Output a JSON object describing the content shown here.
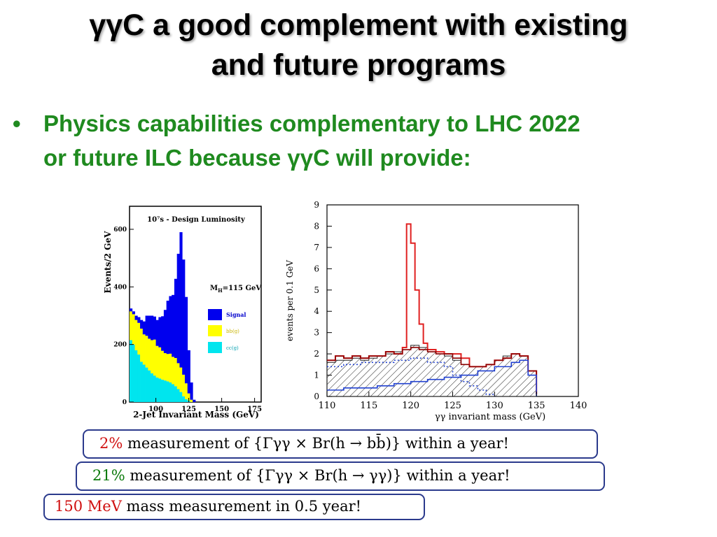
{
  "slide": {
    "title_line1": "γγC a good complement with existing",
    "title_line2": "and future programs",
    "bullet": "•",
    "bullet_line1": "Physics capabilities complementary to LHC  2022",
    "bullet_line2": "or future ILC because γγC will provide:"
  },
  "left_plot": {
    "title": "10⁷s - Design Luminosity",
    "ylabel": "Events/2 GeV",
    "xlabel": "2-Jet Invariant Mass (GeV)",
    "mass_label": "M",
    "mass_sub": "H",
    "mass_value": "=115 GeV",
    "legend": [
      "Signal",
      "bb(g)",
      "cc(g)"
    ]
  },
  "right_plot": {
    "ylabel": "events per 0.1 GeV",
    "xlabel": "γγ invariant mass (GeV)"
  },
  "boxes": {
    "box1_pct": "2%",
    "box1_text": " measurement of {Γγγ × Br(h → bb̄)} within a year!",
    "box2_pct": "21%",
    "box2_text": " measurement of {Γγγ × Br(h → γγ)} within a year!",
    "box3_val": "150 MeV",
    "box3_text": " mass measurement in 0.5 year!"
  },
  "chart_data": [
    {
      "type": "area",
      "title": "10⁷s - Design Luminosity",
      "xlabel": "2-Jet Invariant Mass (GeV)",
      "ylabel": "Events/2 GeV",
      "xlim": [
        80,
        180
      ],
      "ylim": [
        0,
        680
      ],
      "xticks": [
        100,
        125,
        150,
        175
      ],
      "yticks": [
        0,
        200,
        400,
        600
      ],
      "stacked": true,
      "bin_width": 2,
      "x": [
        80,
        82,
        84,
        86,
        88,
        90,
        92,
        94,
        96,
        98,
        100,
        102,
        104,
        106,
        108,
        110,
        112,
        114,
        116,
        118,
        120,
        122,
        124,
        126,
        128,
        130
      ],
      "series": [
        {
          "name": "cc(g)",
          "color": "#00e5ee",
          "values": [
            215,
            200,
            180,
            165,
            140,
            130,
            120,
            110,
            100,
            92,
            85,
            82,
            78,
            75,
            72,
            68,
            62,
            55,
            45,
            35,
            20,
            10,
            5,
            0,
            0,
            0
          ]
        },
        {
          "name": "bb(g)",
          "color": "#ffff00",
          "values": [
            100,
            105,
            105,
            110,
            115,
            105,
            110,
            110,
            115,
            125,
            110,
            108,
            100,
            95,
            95,
            100,
            95,
            98,
            90,
            85,
            75,
            55,
            25,
            8,
            0,
            0
          ]
        },
        {
          "name": "Signal",
          "color": "#0000ee",
          "values": [
            10,
            10,
            15,
            20,
            30,
            45,
            70,
            80,
            85,
            80,
            90,
            105,
            120,
            150,
            185,
            200,
            215,
            275,
            380,
            470,
            400,
            300,
            150,
            60,
            8,
            0
          ]
        }
      ]
    },
    {
      "type": "line",
      "xlabel": "γγ invariant mass (GeV)",
      "ylabel": "events per 0.1 GeV",
      "xlim": [
        110,
        140
      ],
      "ylim": [
        0,
        9
      ],
      "xticks": [
        110,
        115,
        120,
        125,
        130,
        135,
        140
      ],
      "yticks": [
        0,
        1,
        2,
        3,
        4,
        5,
        6,
        7,
        8,
        9
      ],
      "series": [
        {
          "name": "total",
          "color": "#e02020",
          "x": [
            110,
            111,
            112,
            113,
            114,
            115,
            116,
            117,
            118,
            119,
            119.5,
            120,
            120.5,
            121,
            121.5,
            122,
            123,
            124,
            125,
            126,
            127,
            128,
            129,
            130,
            131,
            132,
            133,
            134,
            135
          ],
          "values": [
            1.7,
            1.9,
            1.8,
            1.9,
            1.8,
            1.9,
            1.9,
            2.1,
            2.0,
            2.3,
            8.1,
            7.2,
            5.0,
            3.4,
            2.5,
            2.2,
            2.1,
            2.0,
            2.0,
            1.8,
            1.4,
            1.4,
            1.5,
            1.7,
            1.8,
            2.0,
            1.9,
            1.2,
            0.1
          ]
        },
        {
          "name": "background",
          "color": "#8b0000",
          "x": [
            110,
            111,
            112,
            113,
            114,
            115,
            116,
            117,
            118,
            119,
            120,
            121,
            122,
            123,
            124,
            125,
            126,
            127,
            128,
            129,
            130,
            131,
            132,
            133,
            134,
            135
          ],
          "values": [
            1.7,
            1.9,
            1.8,
            1.9,
            1.8,
            1.9,
            1.9,
            2.1,
            2.0,
            2.2,
            2.3,
            2.2,
            2.1,
            2.0,
            2.0,
            1.8,
            1.5,
            1.4,
            1.4,
            1.5,
            1.7,
            1.8,
            2.0,
            1.9,
            1.2,
            0.1
          ]
        },
        {
          "name": "hatched",
          "color": "#222222",
          "x": [
            110,
            111,
            112,
            113,
            114,
            115,
            116,
            117,
            118,
            119,
            120,
            121,
            122,
            123,
            124,
            125,
            126,
            127,
            128,
            129,
            130,
            131,
            132,
            133,
            134,
            135
          ],
          "values": [
            1.6,
            1.7,
            1.7,
            1.8,
            1.7,
            1.8,
            1.9,
            2.0,
            2.1,
            2.2,
            2.4,
            2.3,
            2.1,
            2.0,
            1.9,
            1.7,
            1.5,
            1.4,
            1.4,
            1.5,
            1.7,
            1.9,
            2.0,
            1.9,
            1.2,
            0.1
          ]
        },
        {
          "name": "dotted",
          "color": "#2040d0",
          "x": [
            110,
            112,
            114,
            116,
            118,
            120,
            122,
            124,
            125,
            126,
            127,
            128,
            129,
            130
          ],
          "values": [
            1.4,
            1.5,
            1.6,
            1.6,
            1.7,
            1.8,
            1.6,
            1.4,
            1.0,
            0.7,
            0.5,
            0.3,
            0.1,
            0.0
          ]
        },
        {
          "name": "rising",
          "color": "#2040d0",
          "x": [
            110,
            112,
            114,
            116,
            118,
            120,
            122,
            124,
            126,
            128,
            130,
            132,
            133,
            134,
            135
          ],
          "values": [
            0.3,
            0.4,
            0.4,
            0.5,
            0.6,
            0.7,
            0.8,
            0.9,
            1.0,
            1.2,
            1.4,
            1.6,
            1.7,
            1.0,
            0.0
          ]
        }
      ]
    }
  ]
}
